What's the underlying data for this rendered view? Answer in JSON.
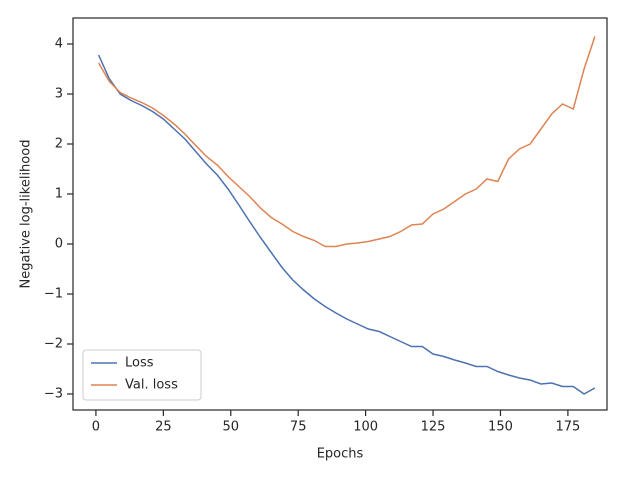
{
  "chart_data": {
    "type": "line",
    "xlabel": "Epochs",
    "ylabel": "Negative log-likelihood",
    "x": [
      1,
      5,
      9,
      13,
      17,
      21,
      25,
      29,
      33,
      37,
      41,
      45,
      49,
      53,
      57,
      61,
      65,
      69,
      73,
      77,
      81,
      85,
      89,
      93,
      97,
      101,
      105,
      109,
      113,
      117,
      121,
      125,
      129,
      133,
      137,
      141,
      145,
      149,
      153,
      157,
      161,
      165,
      169,
      173,
      177,
      181,
      185
    ],
    "series": [
      {
        "name": "Loss",
        "color": "#4c72b0",
        "values": [
          3.78,
          3.3,
          3.0,
          2.87,
          2.77,
          2.65,
          2.5,
          2.3,
          2.1,
          1.85,
          1.6,
          1.38,
          1.1,
          0.78,
          0.45,
          0.13,
          -0.17,
          -0.47,
          -0.72,
          -0.92,
          -1.1,
          -1.25,
          -1.38,
          -1.5,
          -1.6,
          -1.7,
          -1.75,
          -1.85,
          -1.95,
          -2.05,
          -2.05,
          -2.2,
          -2.25,
          -2.32,
          -2.38,
          -2.45,
          -2.45,
          -2.55,
          -2.62,
          -2.68,
          -2.72,
          -2.8,
          -2.78,
          -2.85,
          -2.85,
          -3.0,
          -2.88
        ]
      },
      {
        "name": "Val. loss",
        "color": "#dd8452",
        "values": [
          3.62,
          3.25,
          3.03,
          2.92,
          2.83,
          2.72,
          2.57,
          2.4,
          2.2,
          1.97,
          1.75,
          1.58,
          1.35,
          1.15,
          0.95,
          0.72,
          0.53,
          0.4,
          0.25,
          0.15,
          0.07,
          -0.05,
          -0.05,
          0.0,
          0.02,
          0.05,
          0.1,
          0.15,
          0.25,
          0.38,
          0.4,
          0.6,
          0.7,
          0.85,
          1.0,
          1.1,
          1.3,
          1.25,
          1.7,
          1.9,
          2.0,
          2.3,
          2.6,
          2.8,
          2.7,
          3.5,
          4.15
        ]
      }
    ],
    "xlim": [
      -8.5,
      189.5
    ],
    "xticks": [
      0,
      25,
      50,
      75,
      100,
      125,
      150,
      175
    ],
    "ylim": [
      -3.32,
      4.52
    ],
    "yticks": [
      {
        "value": -3,
        "label": "−3"
      },
      {
        "value": -2,
        "label": "−2"
      },
      {
        "value": -1,
        "label": "−1"
      },
      0,
      1,
      2,
      3,
      4
    ],
    "legend": "lower left"
  }
}
